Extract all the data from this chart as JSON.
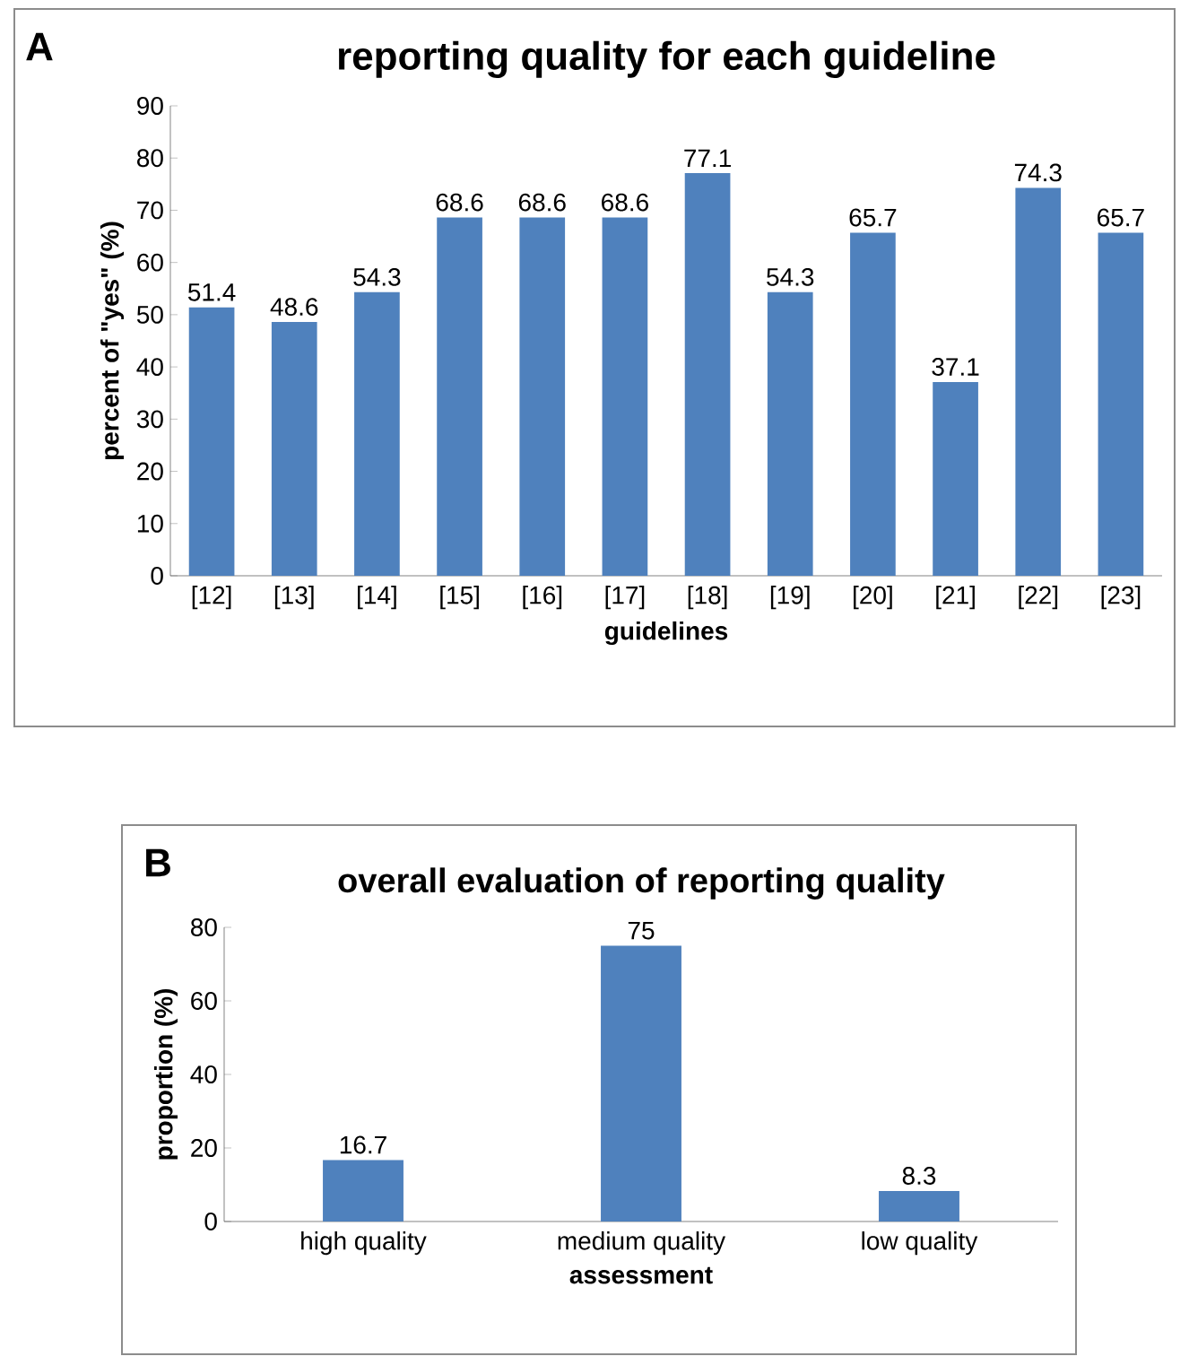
{
  "chart_data": [
    {
      "type": "bar",
      "title": "reporting quality for each guideline",
      "xlabel": "guidelines",
      "ylabel": "percent of \"yes\" (%)",
      "annotations": [
        "A"
      ],
      "categories": [
        "[12]",
        "[13]",
        "[14]",
        "[15]",
        "[16]",
        "[17]",
        "[18]",
        "[19]",
        "[20]",
        "[21]",
        "[22]",
        "[23]"
      ],
      "values": [
        51.4,
        48.6,
        54.3,
        68.6,
        68.6,
        68.6,
        77.1,
        54.3,
        65.7,
        37.1,
        74.3,
        65.7
      ],
      "color": "#4f81bd",
      "ylim": [
        0,
        90
      ],
      "yticks": [
        0,
        10,
        20,
        30,
        40,
        50,
        60,
        70,
        80,
        90
      ],
      "data_labels": true
    },
    {
      "type": "bar",
      "title": "overall evaluation  of reporting quality",
      "xlabel": "assessment",
      "ylabel": "proportion (%)",
      "annotations": [
        "B"
      ],
      "categories": [
        "high quality",
        "medium quality",
        "low quality"
      ],
      "values": [
        16.7,
        75,
        8.3
      ],
      "color": "#4f81bd",
      "ylim": [
        0,
        80
      ],
      "yticks": [
        0,
        20,
        40,
        60,
        80
      ],
      "data_labels": true
    }
  ]
}
